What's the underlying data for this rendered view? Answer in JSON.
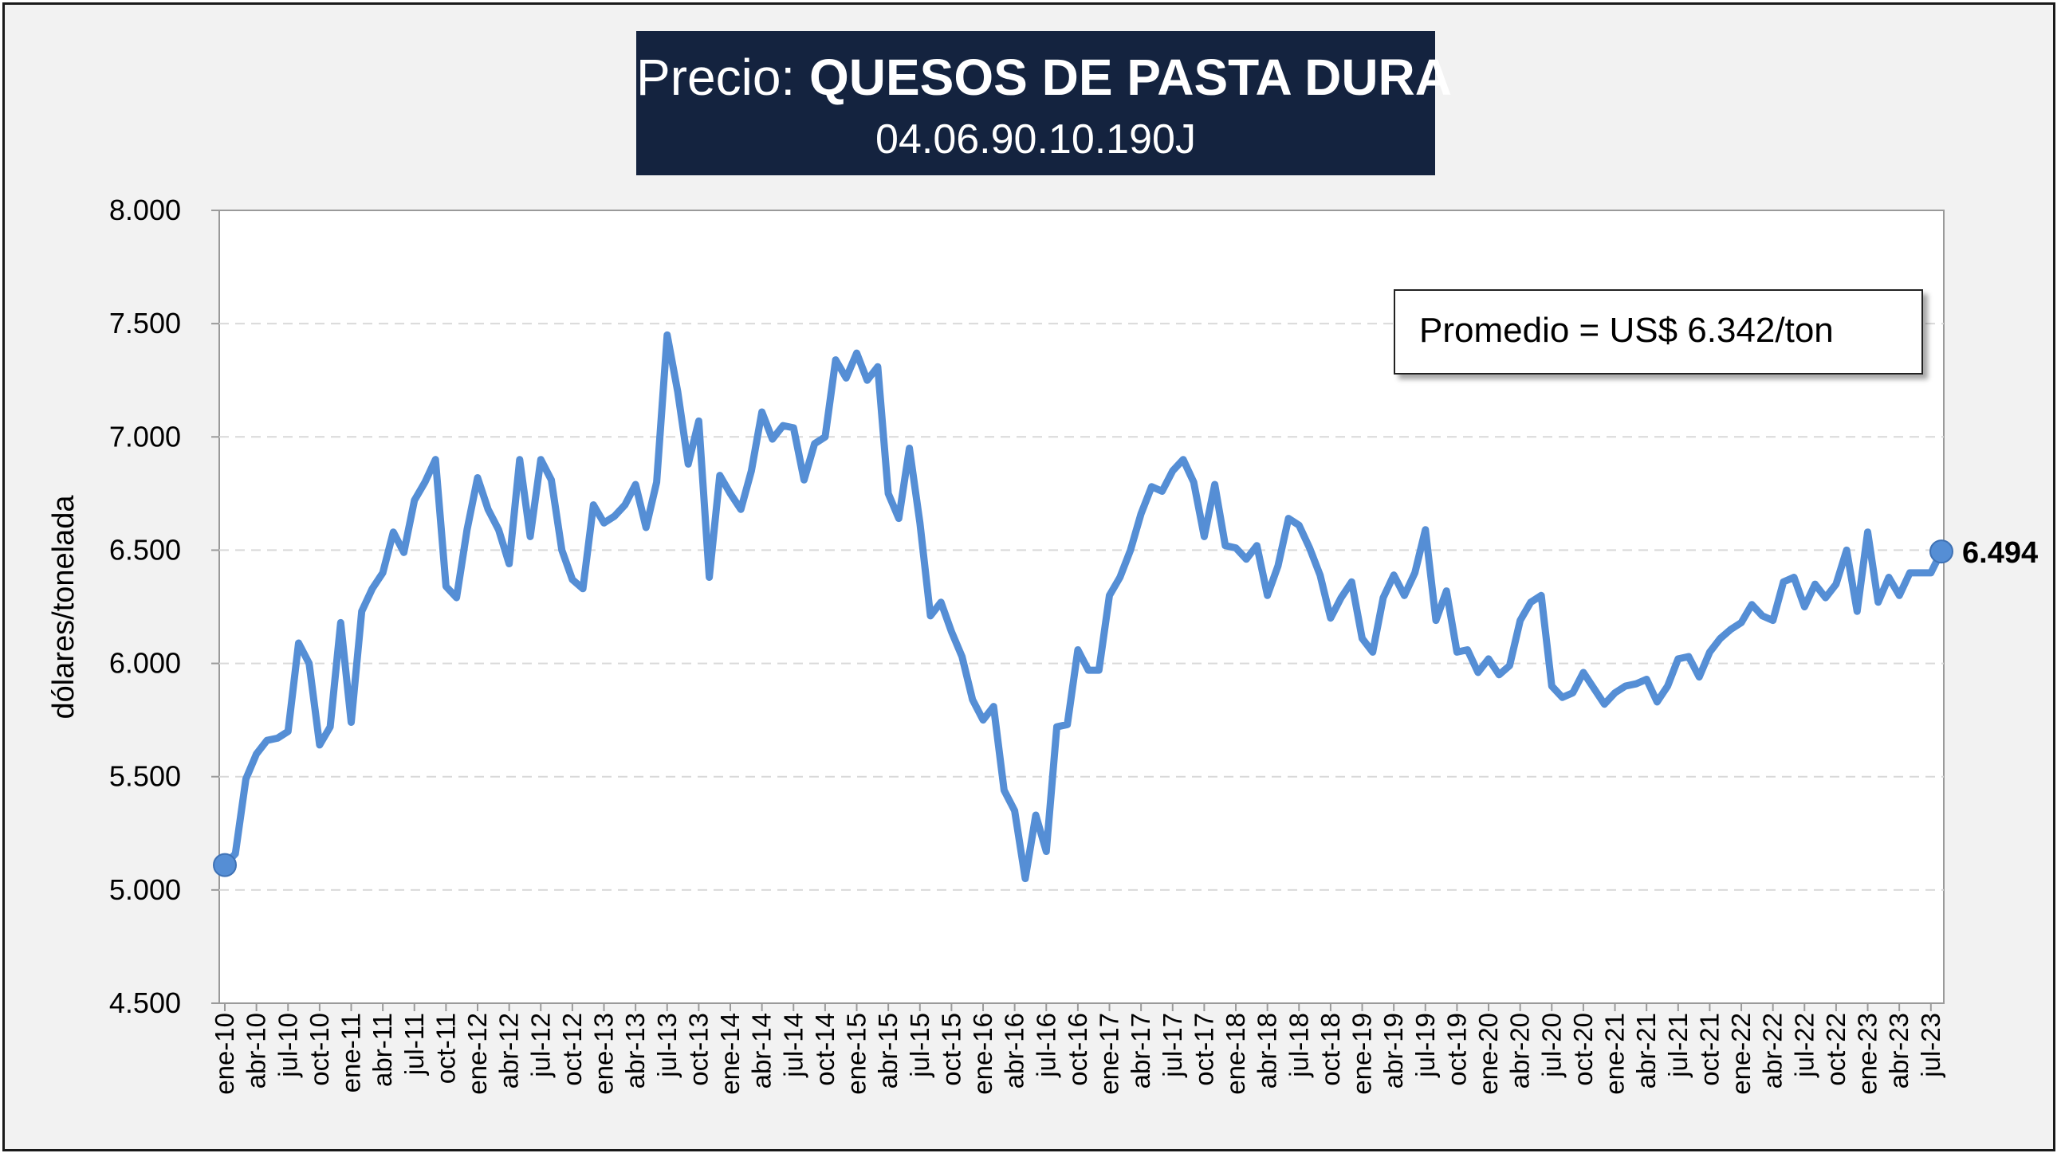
{
  "title": {
    "prefix": "Precio: ",
    "product": "QUESOS DE PASTA DURA",
    "code": "04.06.90.10.190J"
  },
  "annotation": {
    "average_text": "Promedio = US$ 6.342/ton"
  },
  "colors": {
    "line": "#558ed5",
    "title_bg": "#14233f",
    "frame_bg": "#f2f2f2",
    "plot_bg": "#ffffff",
    "grid": "#d9d9d9"
  },
  "chart_data": {
    "type": "line",
    "title": "Precio: QUESOS DE PASTA DURA",
    "subtitle": "04.06.90.10.190J",
    "xlabel": "",
    "ylabel": "dólares/tonelada",
    "ylim": [
      4500,
      8000
    ],
    "yticks": [
      4500,
      5000,
      5500,
      6000,
      6500,
      7000,
      7500,
      8000
    ],
    "ytick_labels": [
      "4.500",
      "5.000",
      "5.500",
      "6.000",
      "6.500",
      "7.000",
      "7.500",
      "8.000"
    ],
    "grid": "horizontal dashed",
    "legend": "none",
    "x_start": "ene-10",
    "x_end": "ago-23",
    "xtick_labels": [
      "ene-10",
      "abr-10",
      "jul-10",
      "oct-10",
      "ene-11",
      "abr-11",
      "jul-11",
      "oct-11",
      "ene-12",
      "abr-12",
      "jul-12",
      "oct-12",
      "ene-13",
      "abr-13",
      "jul-13",
      "oct-13",
      "ene-14",
      "abr-14",
      "jul-14",
      "oct-14",
      "ene-15",
      "abr-15",
      "jul-15",
      "oct-15",
      "ene-16",
      "abr-16",
      "jul-16",
      "oct-16",
      "ene-17",
      "abr-17",
      "jul-17",
      "oct-17",
      "ene-18",
      "abr-18",
      "jul-18",
      "oct-18",
      "ene-19",
      "abr-19",
      "jul-19",
      "oct-19",
      "ene-20",
      "abr-20",
      "jul-20",
      "oct-20",
      "ene-21",
      "abr-21",
      "jul-21",
      "oct-21",
      "ene-22",
      "abr-22",
      "jul-22",
      "oct-22",
      "ene-23",
      "abr-23",
      "jul-23"
    ],
    "last_value_label": "6.494",
    "series": [
      {
        "values": [
          5110,
          5160,
          5490,
          5600,
          5660,
          5670,
          5700,
          6090,
          6000,
          5640,
          5720,
          6180,
          5740,
          6230,
          6330,
          6400,
          6580,
          6490,
          6720,
          6800,
          6900,
          6340,
          6290,
          6590,
          6820,
          6680,
          6590,
          6440,
          6900,
          6560,
          6900,
          6810,
          6500,
          6370,
          6330,
          6700,
          6620,
          6650,
          6700,
          6790,
          6600,
          6800,
          7450,
          7200,
          6880,
          7070,
          6380,
          6830,
          6750,
          6680,
          6850,
          7110,
          6990,
          7050,
          7040,
          6810,
          6970,
          7000,
          7340,
          7260,
          7370,
          7250,
          7310,
          6750,
          6640,
          6950,
          6620,
          6210,
          6270,
          6140,
          6030,
          5840,
          5750,
          5810,
          5440,
          5350,
          5050,
          5330,
          5170,
          5720,
          5730,
          6060,
          5970,
          5970,
          6300,
          6380,
          6500,
          6660,
          6780,
          6760,
          6850,
          6900,
          6800,
          6560,
          6790,
          6520,
          6510,
          6460,
          6520,
          6300,
          6430,
          6640,
          6610,
          6510,
          6390,
          6200,
          6290,
          6360,
          6110,
          6050,
          6290,
          6390,
          6300,
          6400,
          6590,
          6190,
          6320,
          6050,
          6060,
          5960,
          6020,
          5950,
          5990,
          6190,
          6270,
          6300,
          5900,
          5850,
          5870,
          5960,
          5890,
          5820,
          5870,
          5900,
          5910,
          5930,
          5830,
          5900,
          6020,
          6030,
          5940,
          6050,
          6110,
          6150,
          6180,
          6260,
          6210,
          6190,
          6360,
          6380,
          6250,
          6350,
          6290,
          6350,
          6500,
          6230,
          6580,
          6270,
          6380,
          6300,
          6400,
          6400,
          6400,
          6494
        ]
      }
    ]
  }
}
